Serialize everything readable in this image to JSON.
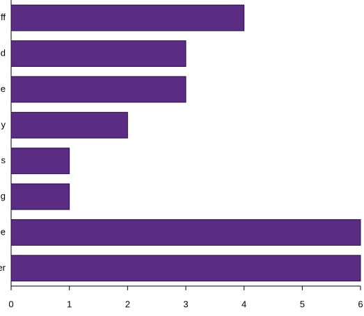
{
  "chart_data": {
    "type": "barh",
    "categories": [
      "ff",
      "d",
      "e",
      "y",
      "s",
      "g",
      "e",
      "er"
    ],
    "values": [
      4,
      3,
      3,
      2,
      1,
      1,
      6,
      6
    ],
    "color": "#5b2c83",
    "xlim": [
      0,
      6
    ],
    "xticks": [
      0,
      1,
      2,
      3,
      4,
      5,
      6
    ]
  }
}
